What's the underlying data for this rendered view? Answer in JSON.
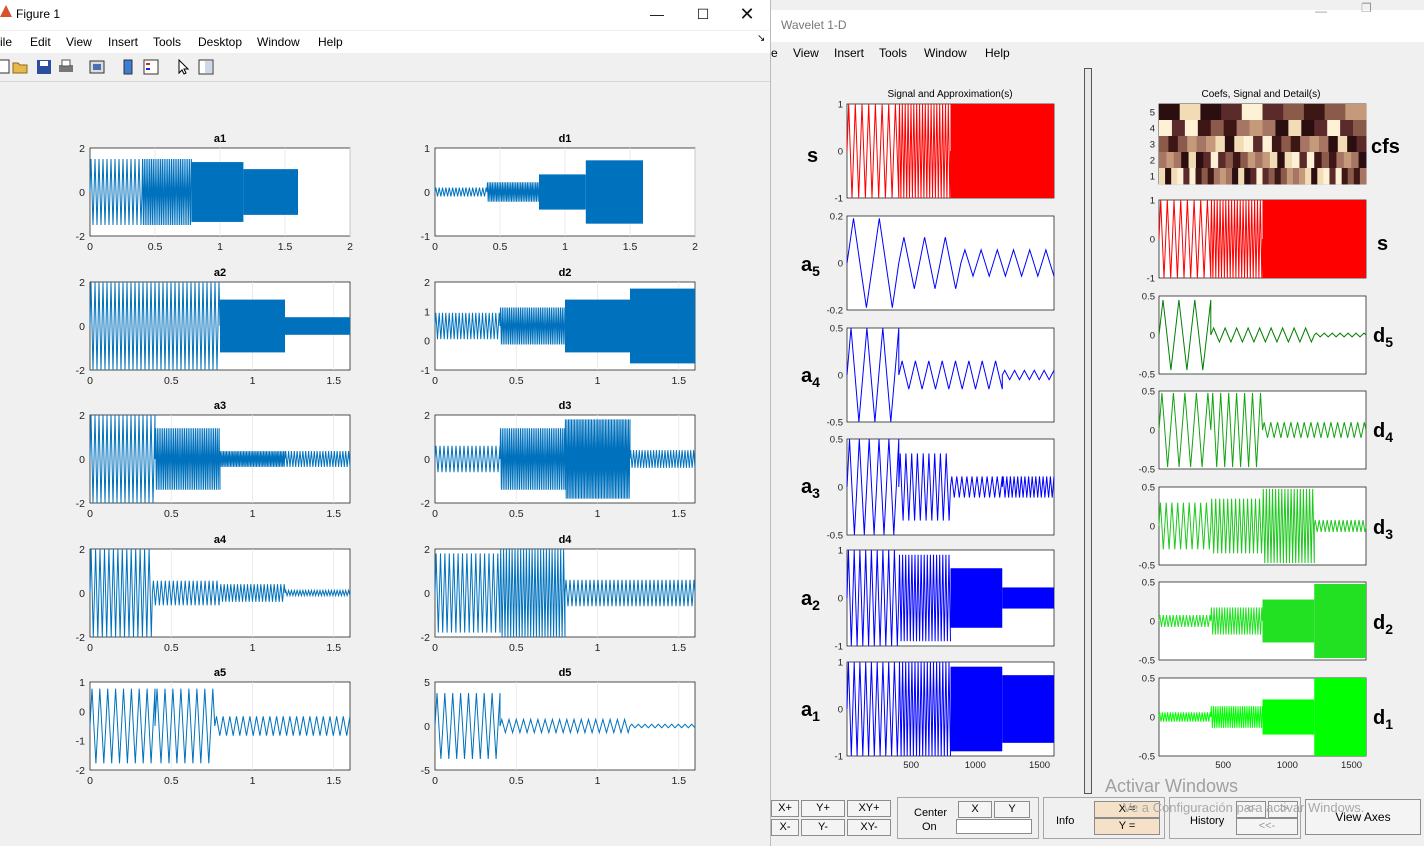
{
  "figure": {
    "title": "Figure 1",
    "menu": [
      "ile",
      "Edit",
      "View",
      "Insert",
      "Tools",
      "Desktop",
      "Window",
      "Help"
    ],
    "toolbar_icons": [
      "new-figure-icon",
      "open-file-icon",
      "save-icon",
      "print-icon",
      "print-preview-icon",
      "colorbar-icon",
      "legend-icon",
      "pointer-icon",
      "property-editor-icon"
    ],
    "plots": [
      {
        "id": "a1",
        "title": "a1",
        "yticks": [
          "2",
          "0",
          "-2"
        ],
        "xticks": [
          "0",
          "0.5",
          "1",
          "1.5",
          "2"
        ]
      },
      {
        "id": "d1",
        "title": "d1",
        "yticks": [
          "1",
          "0",
          "-1"
        ],
        "xticks": [
          "0",
          "0.5",
          "1",
          "1.5",
          "2"
        ]
      },
      {
        "id": "a2",
        "title": "a2",
        "yticks": [
          "2",
          "0",
          "-2"
        ],
        "xticks": [
          "0",
          "0.5",
          "1",
          "1.5"
        ]
      },
      {
        "id": "d2",
        "title": "d2",
        "yticks": [
          "2",
          "1",
          "0",
          "-1"
        ],
        "xticks": [
          "0",
          "0.5",
          "1",
          "1.5"
        ]
      },
      {
        "id": "a3",
        "title": "a3",
        "yticks": [
          "2",
          "0",
          "-2"
        ],
        "xticks": [
          "0",
          "0.5",
          "1",
          "1.5"
        ]
      },
      {
        "id": "d3",
        "title": "d3",
        "yticks": [
          "2",
          "0",
          "-2"
        ],
        "xticks": [
          "0",
          "0.5",
          "1",
          "1.5"
        ]
      },
      {
        "id": "a4",
        "title": "a4",
        "yticks": [
          "2",
          "0",
          "-2"
        ],
        "xticks": [
          "0",
          "0.5",
          "1",
          "1.5"
        ]
      },
      {
        "id": "d4",
        "title": "d4",
        "yticks": [
          "2",
          "0",
          "-2"
        ],
        "xticks": [
          "0",
          "0.5",
          "1",
          "1.5"
        ]
      },
      {
        "id": "a5",
        "title": "a5",
        "yticks": [
          "1",
          "0",
          "-1",
          "-2"
        ],
        "xticks": [
          "0",
          "0.5",
          "1",
          "1.5"
        ]
      },
      {
        "id": "d5",
        "title": "d5",
        "yticks": [
          "5",
          "0",
          "-5"
        ],
        "xticks": [
          "0",
          "0.5",
          "1",
          "1.5"
        ]
      }
    ],
    "line_color": "#0072bd"
  },
  "wavelet": {
    "title": "Wavelet 1-D",
    "menu": [
      "e",
      "View",
      "Insert",
      "Tools",
      "Window",
      "Help"
    ],
    "left_header": "Signal and Approximation(s)",
    "right_header": "Coefs, Signal and Detail(s)",
    "left_panels": [
      {
        "label": "s",
        "sub": "",
        "yticks": [
          "1",
          "0",
          "-1"
        ],
        "color": "#ff0000"
      },
      {
        "label": "a",
        "sub": "5",
        "yticks": [
          "0.2",
          "0",
          "-0.2"
        ],
        "color": "#0000ff"
      },
      {
        "label": "a",
        "sub": "4",
        "yticks": [
          "0.5",
          "0",
          "-0.5"
        ],
        "color": "#0000ff"
      },
      {
        "label": "a",
        "sub": "3",
        "yticks": [
          "0.5",
          "0",
          "-0.5"
        ],
        "color": "#0000ff"
      },
      {
        "label": "a",
        "sub": "2",
        "yticks": [
          "1",
          "0",
          "-1"
        ],
        "color": "#0000ff"
      },
      {
        "label": "a",
        "sub": "1",
        "yticks": [
          "1",
          "0",
          "-1"
        ],
        "color": "#0000ff"
      }
    ],
    "right_panels": [
      {
        "label": "cfs",
        "sub": "",
        "yticks": [
          "5",
          "4",
          "3",
          "2",
          "1"
        ],
        "color": "#8b3a3a"
      },
      {
        "label": "s",
        "sub": "",
        "yticks": [
          "1",
          "0",
          "-1"
        ],
        "color": "#ff0000"
      },
      {
        "label": "d",
        "sub": "5",
        "yticks": [
          "0.5",
          "0",
          "-0.5"
        ],
        "color": "#007f00"
      },
      {
        "label": "d",
        "sub": "4",
        "yticks": [
          "0.5",
          "0",
          "-0.5"
        ],
        "color": "#13a313"
      },
      {
        "label": "d",
        "sub": "3",
        "yticks": [
          "0.5",
          "0",
          "-0.5"
        ],
        "color": "#1ec81e"
      },
      {
        "label": "d",
        "sub": "2",
        "yticks": [
          "0.5",
          "0",
          "-0.5"
        ],
        "color": "#22e022"
      },
      {
        "label": "d",
        "sub": "1",
        "yticks": [
          "0.5",
          "0",
          "-0.5"
        ],
        "color": "#00ff00"
      }
    ],
    "xticks": [
      "500",
      "1000",
      "1500"
    ],
    "controls": {
      "xplus": "X+",
      "yplus": "Y+",
      "xyplus": "XY+",
      "xminus": "X-",
      "yminus": "Y-",
      "xyminus": "XY-",
      "center_label": "Center",
      "on_label": "On",
      "x_btn": "X",
      "y_btn": "Y",
      "info_label": "Info",
      "x_eq": "X =",
      "y_eq": "Y =",
      "history_label": "History",
      "hist_fwd": "<-",
      "hist_back": "->",
      "hist_first": "<<-",
      "view_axes": "View Axes"
    }
  },
  "watermark": {
    "line1": "Activar Windows",
    "line2": "Ve a Configuración para activar Windows."
  }
}
